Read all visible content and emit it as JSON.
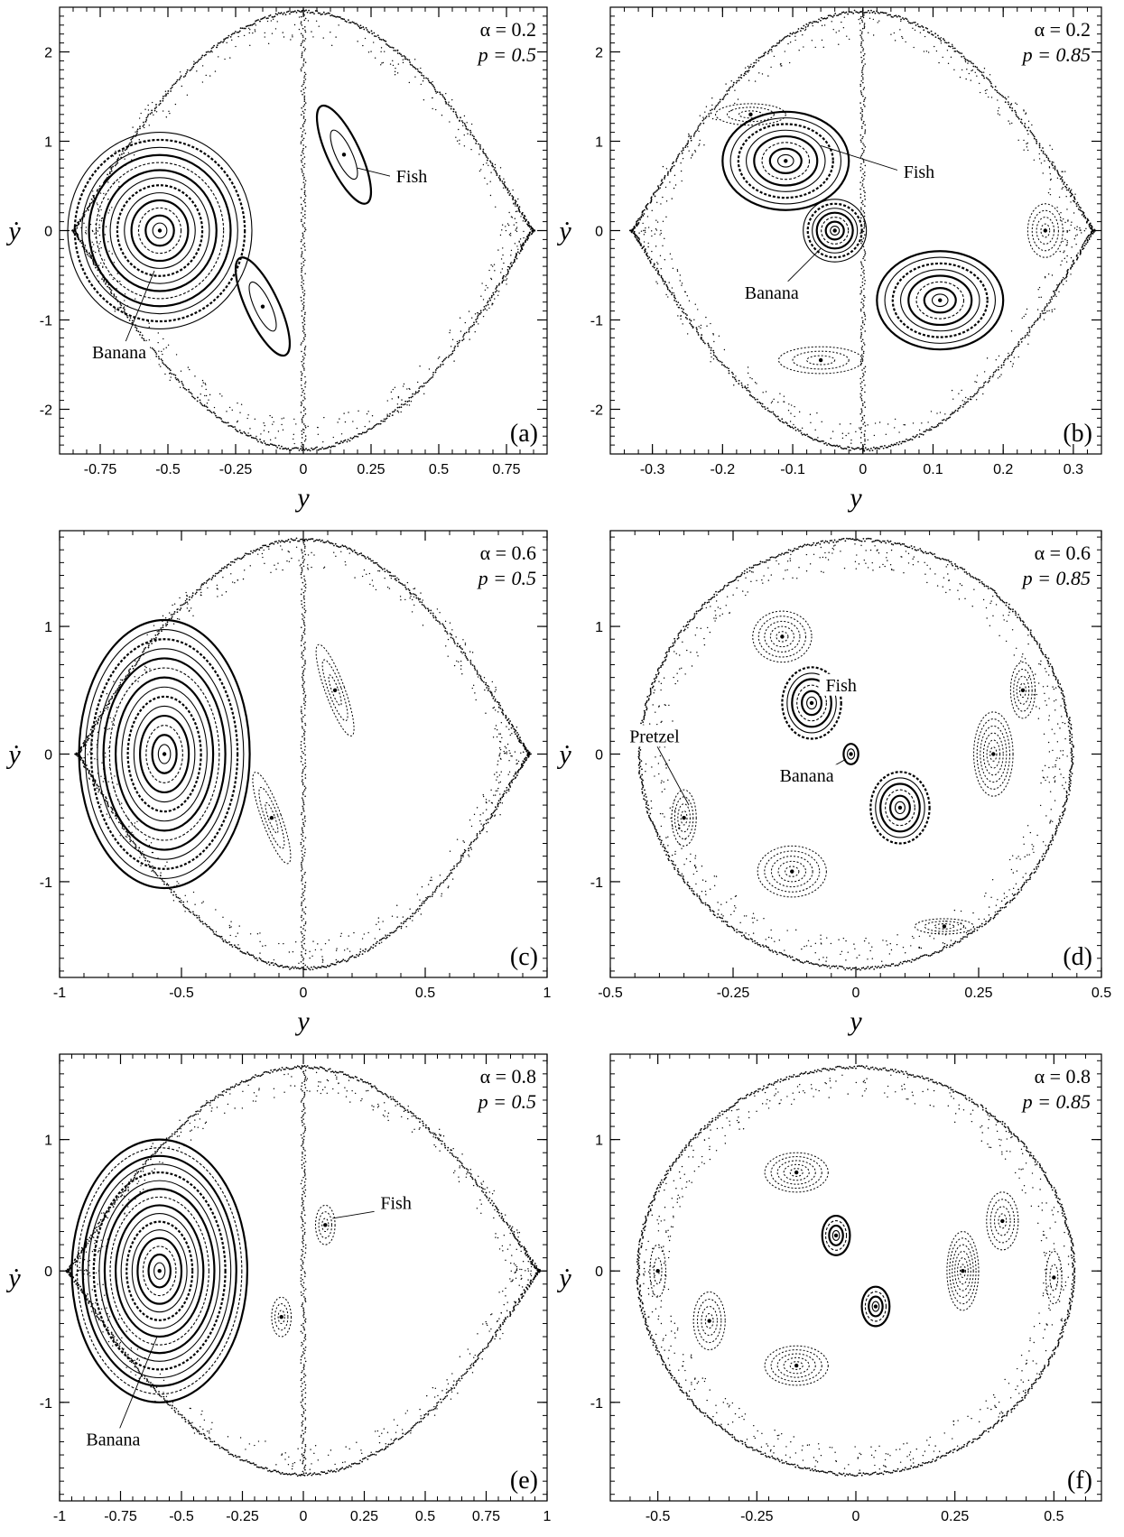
{
  "chart_data": [
    {
      "type": "scatter",
      "panel_label": "(a)",
      "alpha_text": "α = 0.2",
      "p_text": "p = 0.5",
      "xlabel": "y",
      "ylabel": "ẏ",
      "xlim": [
        -0.9,
        0.9
      ],
      "ylim": [
        -2.5,
        2.5
      ],
      "x_ticks": [
        -0.75,
        -0.5,
        -0.25,
        0,
        0.25,
        0.5,
        0.75
      ],
      "x_tick_labels": [
        "-0.75",
        "-0.5",
        "-0.25",
        "0",
        "0.25",
        "0.5",
        "0.75"
      ],
      "y_ticks": [
        -2,
        -1,
        0,
        1,
        2
      ],
      "y_tick_labels": [
        "-2",
        "-1",
        "0",
        "1",
        "2"
      ],
      "boundary": {
        "x_extent": 0.85,
        "y_extent": 2.45,
        "shape": "lens"
      },
      "islands": [
        {
          "name": "banana",
          "cx": -0.53,
          "cy": 0.0,
          "rx": 0.34,
          "ry": 1.1,
          "rings": 13,
          "bold": true
        },
        {
          "name": "fish-upper",
          "cx": 0.15,
          "cy": 0.85,
          "rx": 0.06,
          "ry": 0.6,
          "rings": 2,
          "rot": 25,
          "bold": true
        },
        {
          "name": "fish-lower",
          "cx": -0.15,
          "cy": -0.85,
          "rx": 0.06,
          "ry": 0.6,
          "rings": 2,
          "rot": 25,
          "bold": true
        }
      ],
      "annotations": [
        {
          "text": "Fish",
          "tx": 0.4,
          "ty": 0.55,
          "px": 0.2,
          "py": 0.7
        },
        {
          "text": "Banana",
          "tx": -0.68,
          "ty": -1.42,
          "px": -0.55,
          "py": -0.45
        }
      ]
    },
    {
      "type": "scatter",
      "panel_label": "(b)",
      "alpha_text": "α = 0.2",
      "p_text": "p = 0.85",
      "xlabel": "y",
      "ylabel": "ẏ",
      "xlim": [
        -0.36,
        0.34
      ],
      "ylim": [
        -2.5,
        2.5
      ],
      "x_ticks": [
        -0.3,
        -0.2,
        -0.1,
        0,
        0.1,
        0.2,
        0.3
      ],
      "x_tick_labels": [
        "-0.3",
        "-0.2",
        "-0.1",
        "0",
        "0.1",
        "0.2",
        "0.3"
      ],
      "y_ticks": [
        -2,
        -1,
        0,
        1,
        2
      ],
      "y_tick_labels": [
        "-2",
        "-1",
        "0",
        "1",
        "2"
      ],
      "boundary": {
        "x_extent": 0.33,
        "y_extent": 2.45,
        "shape": "lens"
      },
      "islands": [
        {
          "name": "fish-upper",
          "cx": -0.11,
          "cy": 0.78,
          "rx": 0.09,
          "ry": 0.55,
          "rings": 8,
          "rot": 0,
          "bold": true
        },
        {
          "name": "fish-lower",
          "cx": 0.11,
          "cy": -0.78,
          "rx": 0.09,
          "ry": 0.55,
          "rings": 8,
          "rot": 0,
          "bold": true
        },
        {
          "name": "banana",
          "cx": -0.04,
          "cy": 0.0,
          "rx": 0.045,
          "ry": 0.35,
          "rings": 7,
          "bold": true
        },
        {
          "name": "side-right",
          "cx": 0.26,
          "cy": 0.0,
          "rx": 0.025,
          "ry": 0.3,
          "rings": 4,
          "bold": false
        },
        {
          "name": "side-upper",
          "cx": -0.16,
          "cy": 1.3,
          "rx": 0.05,
          "ry": 0.12,
          "rings": 3,
          "bold": false
        },
        {
          "name": "side-lower",
          "cx": -0.06,
          "cy": -1.45,
          "rx": 0.06,
          "ry": 0.15,
          "rings": 3,
          "bold": false
        }
      ],
      "annotations": [
        {
          "text": "Fish",
          "tx": 0.08,
          "ty": 0.6,
          "px": -0.06,
          "py": 0.95
        },
        {
          "text": "Banana",
          "tx": -0.13,
          "ty": -0.75,
          "px": -0.06,
          "py": -0.2
        }
      ]
    },
    {
      "type": "scatter",
      "panel_label": "(c)",
      "alpha_text": "α = 0.6",
      "p_text": "p = 0.5",
      "xlabel": "y",
      "ylabel": "ẏ",
      "xlim": [
        -1,
        1
      ],
      "ylim": [
        -1.75,
        1.75
      ],
      "x_ticks": [
        -1,
        -0.5,
        0,
        0.5,
        1
      ],
      "x_tick_labels": [
        "-1",
        "-0.5",
        "0",
        "0.5",
        "1"
      ],
      "y_ticks": [
        -1,
        0,
        1
      ],
      "y_tick_labels": [
        "-1",
        "0",
        "1"
      ],
      "boundary": {
        "x_extent": 0.93,
        "y_extent": 1.68,
        "shape": "lens"
      },
      "islands": [
        {
          "name": "banana",
          "cx": -0.57,
          "cy": 0.0,
          "rx": 0.35,
          "ry": 1.05,
          "rings": 14,
          "bold": true
        },
        {
          "name": "fish-upper",
          "cx": 0.13,
          "cy": 0.5,
          "rx": 0.04,
          "ry": 0.38,
          "rings": 3,
          "rot": 20,
          "bold": false
        },
        {
          "name": "fish-lower",
          "cx": -0.13,
          "cy": -0.5,
          "rx": 0.04,
          "ry": 0.38,
          "rings": 3,
          "rot": 20,
          "bold": false
        }
      ],
      "annotations": []
    },
    {
      "type": "scatter",
      "panel_label": "(d)",
      "alpha_text": "α = 0.6",
      "p_text": "p = 0.85",
      "xlabel": "y",
      "ylabel": "ẏ",
      "xlim": [
        -0.5,
        0.5
      ],
      "ylim": [
        -1.75,
        1.75
      ],
      "x_ticks": [
        -0.5,
        -0.25,
        0,
        0.25,
        0.5
      ],
      "x_tick_labels": [
        "-0.5",
        "-0.25",
        "0",
        "0.25",
        "0.5"
      ],
      "y_ticks": [
        -1,
        0,
        1
      ],
      "y_tick_labels": [
        "-1",
        "0",
        "1"
      ],
      "boundary": {
        "x_extent": 0.44,
        "y_extent": 1.68,
        "shape": "round"
      },
      "islands": [
        {
          "name": "fish-upper",
          "cx": -0.09,
          "cy": 0.4,
          "rx": 0.06,
          "ry": 0.28,
          "rings": 6,
          "bold": true
        },
        {
          "name": "fish-lower",
          "cx": 0.09,
          "cy": -0.42,
          "rx": 0.06,
          "ry": 0.28,
          "rings": 6,
          "bold": true
        },
        {
          "name": "banana",
          "cx": -0.01,
          "cy": 0.0,
          "rx": 0.015,
          "ry": 0.08,
          "rings": 2,
          "bold": true
        },
        {
          "name": "pretzel-upper-left",
          "cx": -0.15,
          "cy": 0.92,
          "rx": 0.06,
          "ry": 0.2,
          "rings": 5,
          "rot": 0,
          "bold": false
        },
        {
          "name": "pretzel-lower-left",
          "cx": -0.13,
          "cy": -0.92,
          "rx": 0.07,
          "ry": 0.2,
          "rings": 5,
          "bold": false
        },
        {
          "name": "pretzel-right",
          "cx": 0.28,
          "cy": 0.0,
          "rx": 0.04,
          "ry": 0.33,
          "rings": 6,
          "bold": false
        },
        {
          "name": "pretzel-left",
          "cx": -0.35,
          "cy": -0.5,
          "rx": 0.025,
          "ry": 0.22,
          "rings": 4,
          "bold": false
        },
        {
          "name": "pretzel-upper-right",
          "cx": 0.34,
          "cy": 0.5,
          "rx": 0.025,
          "ry": 0.22,
          "rings": 4,
          "bold": false
        },
        {
          "name": "pretzel-bottom-right",
          "cx": 0.18,
          "cy": -1.35,
          "rx": 0.06,
          "ry": 0.06,
          "rings": 3,
          "bold": false
        }
      ],
      "annotations": [
        {
          "text": "Fish",
          "tx": -0.03,
          "ty": 0.5,
          "px": -0.07,
          "py": 0.5
        },
        {
          "text": "Pretzel",
          "tx": -0.41,
          "ty": 0.1,
          "px": -0.34,
          "py": -0.4
        },
        {
          "text": "Banana",
          "tx": -0.1,
          "ty": -0.21,
          "px": -0.02,
          "py": -0.04
        }
      ]
    },
    {
      "type": "scatter",
      "panel_label": "(e)",
      "alpha_text": "α = 0.8",
      "p_text": "p = 0.5",
      "xlabel": "y",
      "ylabel": "ẏ",
      "xlim": [
        -1,
        1
      ],
      "ylim": [
        -1.75,
        1.65
      ],
      "x_ticks": [
        -1,
        -0.75,
        -0.5,
        -0.25,
        0,
        0.25,
        0.5,
        0.75,
        1
      ],
      "x_tick_labels": [
        "-1",
        "-0.75",
        "-0.5",
        "-0.25",
        "0",
        "0.25",
        "0.5",
        "0.75",
        "1"
      ],
      "y_ticks": [
        -1,
        0,
        1
      ],
      "y_tick_labels": [
        "-1",
        "0",
        "1"
      ],
      "boundary": {
        "x_extent": 0.97,
        "y_extent": 1.55,
        "shape": "lens"
      },
      "islands": [
        {
          "name": "banana",
          "cx": -0.59,
          "cy": 0.0,
          "rx": 0.36,
          "ry": 1.0,
          "rings": 16,
          "bold": true
        },
        {
          "name": "fish-upper",
          "cx": 0.09,
          "cy": 0.35,
          "rx": 0.04,
          "ry": 0.15,
          "rings": 3,
          "bold": false
        },
        {
          "name": "fish-lower",
          "cx": -0.09,
          "cy": -0.35,
          "rx": 0.04,
          "ry": 0.15,
          "rings": 3,
          "bold": false
        }
      ],
      "annotations": [
        {
          "text": "Fish",
          "tx": 0.38,
          "ty": 0.48,
          "px": 0.12,
          "py": 0.4
        },
        {
          "text": "Banana",
          "tx": -0.78,
          "ty": -1.32,
          "px": -0.6,
          "py": -0.5
        }
      ]
    },
    {
      "type": "scatter",
      "panel_label": "(f)",
      "alpha_text": "α = 0.8",
      "p_text": "p = 0.85",
      "xlabel": "y",
      "ylabel": "ẏ",
      "xlim": [
        -0.62,
        0.62
      ],
      "ylim": [
        -1.75,
        1.65
      ],
      "x_ticks": [
        -0.5,
        -0.25,
        0,
        0.25,
        0.5
      ],
      "x_tick_labels": [
        "-0.5",
        "-0.25",
        "0",
        "0.25",
        "0.5"
      ],
      "y_ticks": [
        -1,
        0,
        1
      ],
      "y_tick_labels": [
        "-1",
        "0",
        "1"
      ],
      "boundary": {
        "x_extent": 0.55,
        "y_extent": 1.55,
        "shape": "round"
      },
      "islands": [
        {
          "name": "center-upper",
          "cx": -0.05,
          "cy": 0.27,
          "rx": 0.035,
          "ry": 0.15,
          "rings": 4,
          "bold": true
        },
        {
          "name": "center-lower",
          "cx": 0.05,
          "cy": -0.27,
          "rx": 0.035,
          "ry": 0.15,
          "rings": 4,
          "bold": true
        },
        {
          "name": "right",
          "cx": 0.27,
          "cy": 0.0,
          "rx": 0.04,
          "ry": 0.3,
          "rings": 6,
          "bold": false
        },
        {
          "name": "upper-left",
          "cx": -0.15,
          "cy": 0.75,
          "rx": 0.08,
          "ry": 0.15,
          "rings": 5,
          "bold": false
        },
        {
          "name": "lower-left",
          "cx": -0.15,
          "cy": -0.72,
          "rx": 0.08,
          "ry": 0.15,
          "rings": 5,
          "bold": false
        },
        {
          "name": "far-left",
          "cx": -0.37,
          "cy": -0.38,
          "rx": 0.04,
          "ry": 0.22,
          "rings": 4,
          "bold": false
        },
        {
          "name": "far-right",
          "cx": 0.37,
          "cy": 0.38,
          "rx": 0.04,
          "ry": 0.22,
          "rings": 4,
          "bold": false
        },
        {
          "name": "edge-left",
          "cx": -0.5,
          "cy": 0.0,
          "rx": 0.02,
          "ry": 0.2,
          "rings": 2,
          "bold": false
        },
        {
          "name": "edge-right",
          "cx": 0.5,
          "cy": -0.05,
          "rx": 0.02,
          "ry": 0.2,
          "rings": 2,
          "bold": false
        }
      ],
      "annotations": []
    }
  ]
}
